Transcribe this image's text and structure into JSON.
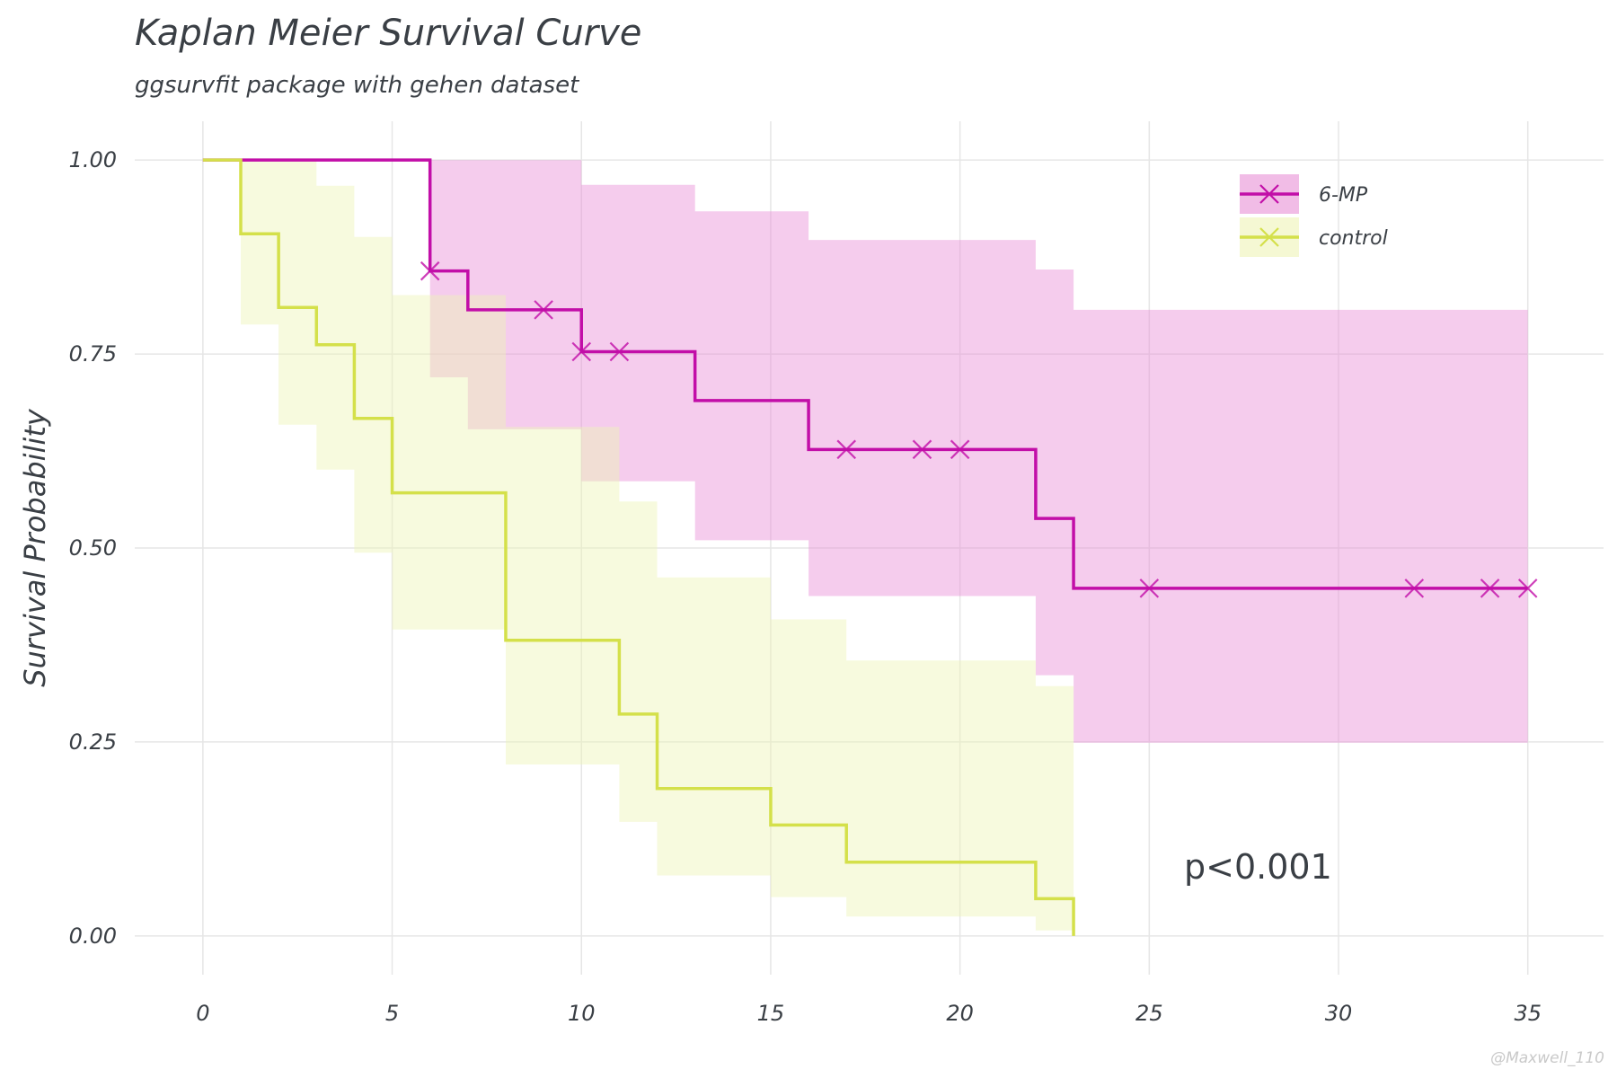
{
  "chart_data": {
    "type": "line",
    "title": "Kaplan Meier Survival Curve",
    "subtitle": "ggsurvfit package with gehen dataset",
    "xlabel": "",
    "ylabel": "Survival Probability",
    "xlim": [
      -1.8,
      37
    ],
    "ylim": [
      -0.05,
      1.05
    ],
    "x_ticks": [
      0,
      5,
      10,
      15,
      20,
      25,
      30,
      35
    ],
    "y_ticks": [
      0,
      0.25,
      0.5,
      0.75,
      1.0
    ],
    "y_tick_labels": [
      "0.00",
      "0.25",
      "0.50",
      "0.75",
      "1.00"
    ],
    "grid": true,
    "legend_position": "top-right",
    "annotation": "p<0.001",
    "series": [
      {
        "name": "6-MP",
        "color": "#c20ea8",
        "band_color": "#e88fd6",
        "steps": [
          [
            0,
            1.0
          ],
          [
            6,
            0.857
          ],
          [
            7,
            0.807
          ],
          [
            10,
            0.753
          ],
          [
            13,
            0.69
          ],
          [
            16,
            0.627
          ],
          [
            22,
            0.538
          ],
          [
            23,
            0.448
          ],
          [
            35,
            0.448
          ]
        ],
        "lower": [
          [
            0,
            1.0
          ],
          [
            6,
            0.72
          ],
          [
            7,
            0.653
          ],
          [
            10,
            0.586
          ],
          [
            13,
            0.51
          ],
          [
            16,
            0.438
          ],
          [
            22,
            0.336
          ],
          [
            23,
            0.249
          ],
          [
            35,
            0.249
          ]
        ],
        "upper": [
          [
            0,
            1.0
          ],
          [
            6,
            1.0
          ],
          [
            7,
            1.0
          ],
          [
            10,
            0.968
          ],
          [
            13,
            0.934
          ],
          [
            16,
            0.897
          ],
          [
            22,
            0.859
          ],
          [
            23,
            0.807
          ],
          [
            35,
            0.807
          ]
        ],
        "censored": [
          [
            6,
            0.857
          ],
          [
            9,
            0.807
          ],
          [
            10,
            0.753
          ],
          [
            11,
            0.753
          ],
          [
            17,
            0.627
          ],
          [
            19,
            0.627
          ],
          [
            20,
            0.627
          ],
          [
            25,
            0.448
          ],
          [
            32,
            0.448
          ],
          [
            34,
            0.448
          ],
          [
            35,
            0.448
          ]
        ]
      },
      {
        "name": "control",
        "color": "#d4e04a",
        "band_color": "#eef4b6",
        "steps": [
          [
            0,
            1.0
          ],
          [
            1,
            0.905
          ],
          [
            2,
            0.81
          ],
          [
            3,
            0.762
          ],
          [
            4,
            0.667
          ],
          [
            5,
            0.571
          ],
          [
            8,
            0.381
          ],
          [
            11,
            0.286
          ],
          [
            12,
            0.19
          ],
          [
            15,
            0.143
          ],
          [
            17,
            0.095
          ],
          [
            22,
            0.048
          ],
          [
            23,
            0.0
          ]
        ],
        "lower": [
          [
            0,
            1.0
          ],
          [
            1,
            0.788
          ],
          [
            2,
            0.659
          ],
          [
            3,
            0.601
          ],
          [
            4,
            0.494
          ],
          [
            5,
            0.395
          ],
          [
            8,
            0.221
          ],
          [
            11,
            0.147
          ],
          [
            12,
            0.078
          ],
          [
            15,
            0.05
          ],
          [
            17,
            0.025
          ],
          [
            22,
            0.007
          ],
          [
            23,
            0.007
          ]
        ],
        "upper": [
          [
            0,
            1.0
          ],
          [
            1,
            1.0
          ],
          [
            2,
            1.0
          ],
          [
            3,
            0.967
          ],
          [
            4,
            0.901
          ],
          [
            5,
            0.826
          ],
          [
            8,
            0.656
          ],
          [
            11,
            0.56
          ],
          [
            12,
            0.462
          ],
          [
            15,
            0.408
          ],
          [
            17,
            0.355
          ],
          [
            22,
            0.322
          ],
          [
            23,
            0.322
          ]
        ],
        "censored": []
      }
    ]
  },
  "credit": "@Maxwell_110"
}
